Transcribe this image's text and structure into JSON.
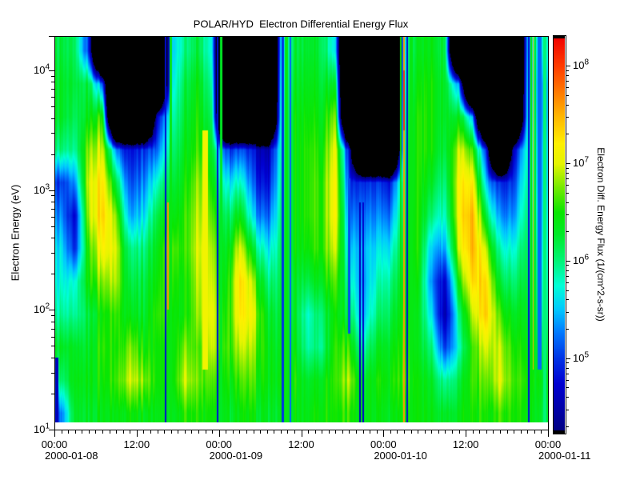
{
  "chart_data": {
    "type": "heatmap",
    "title": "POLAR/HYD  Electron Differential Energy Flux",
    "x_axis": {
      "start": "2000-01-08 00:00",
      "end": "2000-01-11 00:00",
      "hours_total": 72,
      "minor_tick_hours": 1,
      "major_ticks": [
        {
          "hour": 0,
          "time": "00:00",
          "date": "2000-01-08"
        },
        {
          "hour": 12,
          "time": "12:00"
        },
        {
          "hour": 24,
          "time": "00:00",
          "date": "2000-01-09"
        },
        {
          "hour": 36,
          "time": "12:00"
        },
        {
          "hour": 48,
          "time": "00:00",
          "date": "2000-01-10"
        },
        {
          "hour": 60,
          "time": "12:00"
        },
        {
          "hour": 72,
          "time": "00:00",
          "date": "2000-01-11"
        }
      ]
    },
    "y_axis": {
      "label": "Electron Energy (eV)",
      "scale": "log",
      "log_range": [
        1.0,
        4.287
      ],
      "tick_base": "10",
      "decade_ticks": [
        {
          "exp": "4"
        },
        {
          "exp": "3"
        },
        {
          "exp": "2"
        },
        {
          "exp": "1"
        }
      ]
    },
    "colorbar": {
      "label": "Electron Diff. Energy Flux (1/(cm^2-s-sr))",
      "scale": "log",
      "log_range": [
        4.26,
        8.28
      ],
      "tick_base": "10",
      "decade_ticks": [
        {
          "exp": "8"
        },
        {
          "exp": "7"
        },
        {
          "exp": "6"
        },
        {
          "exp": "5"
        }
      ]
    },
    "colormap": {
      "u_range": [
        4.25,
        8.3
      ],
      "black_below_log": 4.1,
      "stops": [
        [
          0.0,
          "#000082"
        ],
        [
          0.12,
          "#0000d2"
        ],
        [
          0.185,
          "#0032e6"
        ],
        [
          0.25,
          "#0078ff"
        ],
        [
          0.309,
          "#00c8ff"
        ],
        [
          0.37,
          "#00ffd7"
        ],
        [
          0.432,
          "#00f578"
        ],
        [
          0.5,
          "#00eb28"
        ],
        [
          0.556,
          "#0ae600"
        ],
        [
          0.62,
          "#78eb00"
        ],
        [
          0.679,
          "#e6f500"
        ],
        [
          0.73,
          "#fff000"
        ],
        [
          0.802,
          "#ffb400"
        ],
        [
          0.87,
          "#ff7000"
        ],
        [
          0.926,
          "#ff3c00"
        ],
        [
          1.0,
          "#f00000"
        ]
      ]
    },
    "grid": {
      "description": "log10 electron differential energy flux; 36 columns of 2 hours each starting 2000-01-08 00:00; 12 energy rows bottom-to-top spanning log10E 1.0 to 4.3; 0 = no data (black)",
      "hours_per_column": 2,
      "log_e_edges": [
        1.0,
        4.3
      ],
      "log_e_row_height": 0.275,
      "no_data": 0,
      "log10_flux_columns": [
        [
          5.2,
          6.0,
          6.3,
          5.9,
          5.7,
          5.6,
          5.3,
          5.0,
          6.0,
          6.3,
          6.3,
          6.2
        ],
        [
          6.2,
          6.3,
          6.2,
          5.8,
          5.6,
          4.8,
          4.6,
          5.2,
          5.8,
          6.0,
          6.1,
          6.0
        ],
        [
          6.3,
          6.4,
          6.3,
          6.2,
          6.5,
          6.6,
          6.9,
          7.0,
          6.8,
          6.4,
          6.2,
          5.0
        ],
        [
          6.4,
          6.5,
          6.6,
          6.5,
          6.8,
          7.2,
          7.4,
          7.3,
          7.0,
          6.6,
          5.2,
          0
        ],
        [
          6.4,
          6.6,
          6.5,
          6.6,
          6.9,
          7.0,
          6.8,
          6.2,
          5.3,
          0,
          0,
          0
        ],
        [
          6.5,
          7.0,
          6.8,
          6.4,
          6.2,
          6.0,
          5.4,
          5.1,
          4.8,
          0,
          0,
          0
        ],
        [
          6.4,
          6.8,
          6.5,
          6.3,
          6.2,
          6.0,
          5.6,
          5.3,
          5.0,
          0,
          0,
          0
        ],
        [
          6.4,
          6.5,
          6.5,
          6.6,
          6.5,
          6.4,
          6.2,
          5.8,
          5.2,
          4.7,
          0,
          0
        ],
        [
          6.3,
          6.4,
          6.4,
          6.5,
          6.6,
          6.7,
          6.4,
          6.2,
          6.0,
          5.8,
          5.6,
          5.5
        ],
        [
          6.6,
          7.0,
          6.8,
          6.5,
          6.5,
          6.6,
          6.6,
          6.5,
          6.4,
          6.3,
          6.2,
          6.0
        ],
        [
          6.5,
          6.7,
          6.6,
          6.8,
          6.9,
          7.0,
          6.9,
          6.8,
          6.6,
          6.5,
          6.4,
          6.2
        ],
        [
          6.4,
          6.6,
          6.9,
          7.0,
          6.9,
          6.8,
          6.6,
          6.4,
          6.2,
          6.0,
          5.8,
          5.6
        ],
        [
          6.3,
          6.4,
          6.5,
          6.4,
          6.3,
          6.2,
          6.0,
          5.6,
          5.0,
          0,
          0,
          0
        ],
        [
          6.4,
          6.6,
          6.9,
          7.2,
          7.3,
          7.0,
          6.4,
          5.8,
          5.1,
          0,
          0,
          0
        ],
        [
          6.4,
          6.6,
          6.8,
          7.0,
          6.8,
          6.2,
          5.5,
          5.1,
          4.8,
          0,
          0,
          0
        ],
        [
          6.3,
          6.4,
          6.4,
          6.3,
          6.0,
          5.6,
          5.1,
          4.7,
          4.4,
          0,
          0,
          0
        ],
        [
          6.3,
          6.4,
          6.3,
          6.2,
          6.1,
          6.0,
          5.9,
          5.8,
          5.7,
          5.6,
          5.5,
          5.4
        ],
        [
          6.4,
          6.5,
          6.4,
          6.3,
          6.3,
          6.4,
          6.4,
          6.4,
          6.4,
          6.4,
          6.3,
          6.2
        ],
        [
          6.4,
          6.3,
          5.9,
          5.8,
          6.2,
          6.5,
          6.6,
          6.6,
          6.6,
          6.5,
          6.4,
          6.3
        ],
        [
          6.5,
          6.4,
          6.0,
          6.1,
          6.4,
          6.6,
          6.6,
          6.6,
          6.5,
          6.4,
          6.3,
          6.2
        ],
        [
          6.5,
          6.6,
          6.6,
          6.5,
          6.7,
          7.0,
          7.2,
          7.2,
          7.1,
          6.8,
          6.3,
          5.6
        ],
        [
          6.6,
          6.9,
          6.6,
          6.2,
          5.9,
          5.6,
          5.3,
          5.0,
          4.7,
          0,
          0,
          0
        ],
        [
          6.3,
          6.2,
          5.8,
          5.4,
          5.3,
          5.4,
          5.2,
          4.9,
          0,
          0,
          0,
          0
        ],
        [
          6.4,
          6.5,
          6.3,
          6.0,
          5.8,
          5.6,
          5.3,
          5.0,
          0,
          0,
          0,
          0
        ],
        [
          6.4,
          6.5,
          6.4,
          6.2,
          6.0,
          5.7,
          5.3,
          4.9,
          0,
          0,
          0,
          0
        ],
        [
          6.5,
          6.7,
          6.6,
          6.5,
          6.4,
          6.3,
          6.2,
          6.1,
          6.0,
          5.9,
          5.8,
          5.7
        ],
        [
          6.5,
          6.5,
          6.4,
          6.4,
          6.5,
          6.6,
          6.6,
          6.6,
          6.6,
          6.6,
          6.5,
          6.4
        ],
        [
          6.4,
          6.3,
          6.0,
          5.6,
          5.3,
          5.5,
          6.0,
          6.3,
          6.5,
          6.5,
          6.5,
          6.4
        ],
        [
          6.3,
          5.9,
          5.0,
          4.5,
          4.7,
          5.4,
          5.8,
          6.0,
          6.2,
          6.3,
          6.3,
          6.2
        ],
        [
          6.4,
          6.2,
          5.8,
          6.0,
          6.5,
          7.0,
          7.2,
          7.2,
          7.0,
          6.4,
          5.4,
          0
        ],
        [
          6.5,
          6.6,
          6.6,
          6.9,
          7.3,
          7.5,
          7.5,
          7.2,
          6.6,
          5.4,
          0,
          0
        ],
        [
          6.5,
          6.7,
          7.0,
          7.4,
          7.3,
          6.9,
          6.2,
          5.5,
          4.9,
          0,
          0,
          0
        ],
        [
          6.6,
          7.0,
          6.9,
          6.6,
          6.2,
          5.8,
          5.3,
          4.9,
          0,
          0,
          0,
          0
        ],
        [
          6.5,
          6.6,
          6.5,
          6.3,
          6.0,
          5.7,
          5.3,
          5.0,
          4.6,
          0,
          0,
          0
        ],
        [
          6.4,
          6.5,
          6.4,
          6.3,
          6.2,
          6.1,
          6.0,
          5.9,
          5.8,
          5.7,
          5.6,
          5.5
        ],
        [
          6.3,
          6.4,
          6.2,
          6.0,
          5.9,
          5.8,
          5.7,
          5.6,
          5.6,
          5.5,
          5.5,
          5.8
        ]
      ]
    },
    "stripes": [
      {
        "t": 0.35,
        "w": 0.5,
        "e1": 1.0,
        "e2": 1.6,
        "v": 4.6
      },
      {
        "t": 16.25,
        "w": 0.25,
        "e1": 1.0,
        "e2": 4.3,
        "v": 4.8
      },
      {
        "t": 16.6,
        "w": 0.2,
        "e1": 2.0,
        "e2": 2.9,
        "v": 7.6
      },
      {
        "t": 16.95,
        "w": 0.3,
        "e1": 1.0,
        "e2": 4.3,
        "v": 6.4
      },
      {
        "t": 22.0,
        "w": 0.8,
        "e1": 1.5,
        "e2": 3.5,
        "v": 7.1
      },
      {
        "t": 23.8,
        "w": 0.3,
        "e1": 1.0,
        "e2": 4.3,
        "v": 4.8
      },
      {
        "t": 24.35,
        "w": 0.3,
        "e1": 1.0,
        "e2": 4.3,
        "v": 6.3
      },
      {
        "t": 33.3,
        "w": 0.3,
        "e1": 1.0,
        "e2": 4.3,
        "v": 5.0
      },
      {
        "t": 33.85,
        "w": 0.4,
        "e1": 1.0,
        "e2": 4.3,
        "v": 6.4
      },
      {
        "t": 34.45,
        "w": 0.25,
        "e1": 1.0,
        "e2": 4.3,
        "v": 5.2
      },
      {
        "t": 43.0,
        "w": 0.4,
        "e1": 1.8,
        "e2": 3.1,
        "v": 5.1
      },
      {
        "t": 44.6,
        "w": 0.25,
        "e1": 1.0,
        "e2": 2.9,
        "v": 4.6
      },
      {
        "t": 45.05,
        "w": 0.2,
        "e1": 1.0,
        "e2": 2.9,
        "v": 4.7
      },
      {
        "t": 50.55,
        "w": 0.3,
        "e1": 1.0,
        "e2": 4.3,
        "v": 6.5
      },
      {
        "t": 51.0,
        "w": 0.22,
        "e1": 1.0,
        "e2": 4.3,
        "v": 7.6
      },
      {
        "t": 51.0,
        "w": 0.16,
        "e1": 3.5,
        "e2": 4.0,
        "v": 8.05
      },
      {
        "t": 51.5,
        "w": 0.25,
        "e1": 1.0,
        "e2": 4.3,
        "v": 4.8
      },
      {
        "t": 52.05,
        "w": 0.4,
        "e1": 1.0,
        "e2": 4.3,
        "v": 6.4
      },
      {
        "t": 69.2,
        "w": 0.3,
        "e1": 1.0,
        "e2": 4.3,
        "v": 4.8
      },
      {
        "t": 69.55,
        "w": 0.25,
        "e1": 1.0,
        "e2": 4.3,
        "v": 6.5
      },
      {
        "t": 69.85,
        "w": 0.18,
        "e1": 1.5,
        "e2": 4.3,
        "v": 7.5
      },
      {
        "t": 70.15,
        "w": 0.3,
        "e1": 1.0,
        "e2": 4.3,
        "v": 6.3
      },
      {
        "t": 70.75,
        "w": 0.6,
        "e1": 1.5,
        "e2": 4.3,
        "v": 5.2
      },
      {
        "t": 71.55,
        "w": 0.5,
        "e1": 1.0,
        "e2": 4.3,
        "v": 6.0
      }
    ],
    "texture": {
      "column_noise_amp": 0.14
    }
  }
}
